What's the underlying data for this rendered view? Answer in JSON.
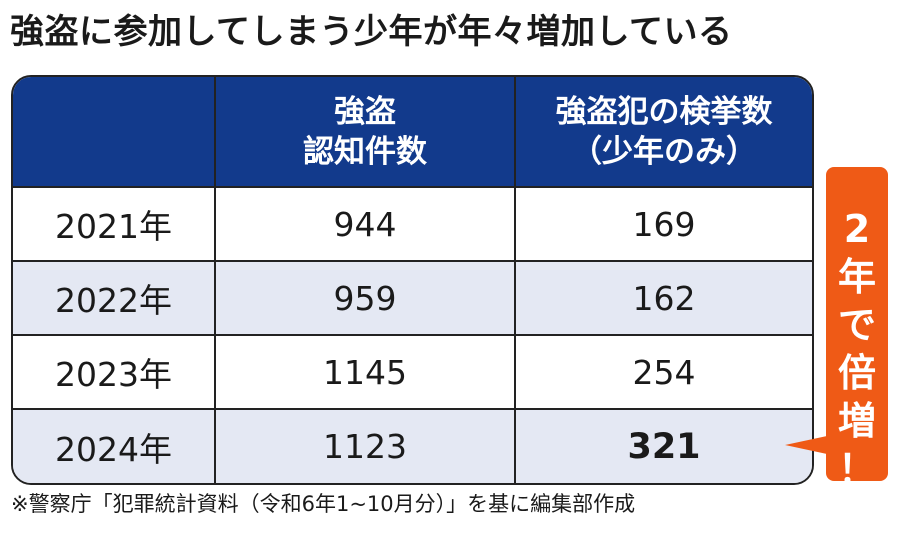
{
  "title": "強盗に参加してしまう少年が年々増加している",
  "chart_data": {
    "type": "table",
    "columns": [
      "",
      "強盗\n認知件数",
      "強盗犯の検挙数\n（少年のみ）"
    ],
    "rows": [
      {
        "year": "2021年",
        "robbery_count": "944",
        "juvenile_arrests": "169"
      },
      {
        "year": "2022年",
        "robbery_count": "959",
        "juvenile_arrests": "162"
      },
      {
        "year": "2023年",
        "robbery_count": "1145",
        "juvenile_arrests": "254"
      },
      {
        "year": "2024年",
        "robbery_count": "1123",
        "juvenile_arrests": "321"
      }
    ],
    "highlight_cell": "321"
  },
  "callout": "2\n年\nで\n倍\n増\n！",
  "source_note": "※警察庁「犯罪統計資料（令和6年1~10月分）」を基に編集部作成",
  "colors": {
    "header_bg": "#123a8c",
    "alt_row_bg": "#e4e8f3",
    "callout_bg": "#ef5a16"
  }
}
